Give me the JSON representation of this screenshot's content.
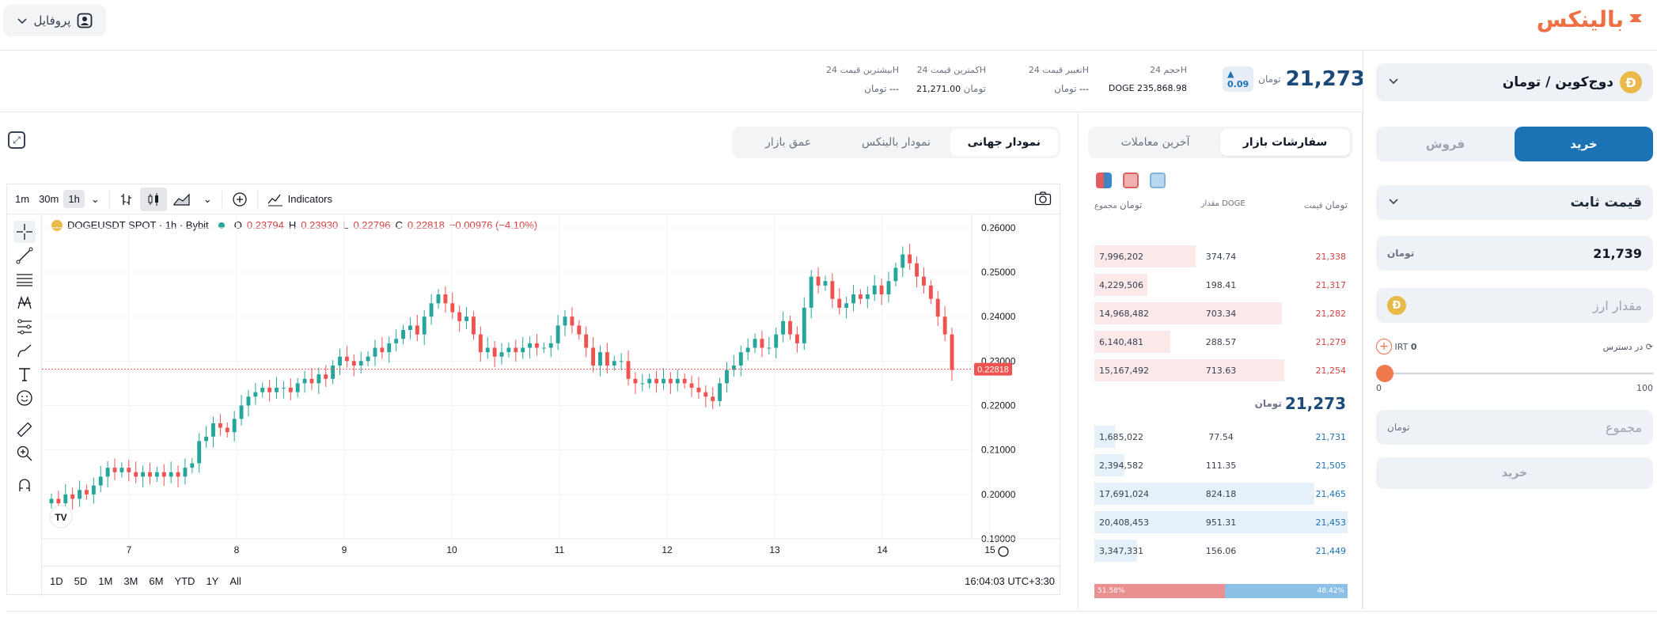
{
  "header": {
    "profile_label": "پروفایل",
    "logo_text": "بالینکس",
    "brand_color": "#ef6f45"
  },
  "trade_form": {
    "pair_label": "دوج‌کوین / تومان",
    "coin_letter": "Đ",
    "tabs": {
      "buy": "خرید",
      "sell": "فروش"
    },
    "order_type": "قیمت ثابت",
    "price_value": "21,739",
    "toman_unit": "تومان",
    "amount_placeholder": "مقدار ارز",
    "available_label": "در دسترس",
    "available_value": "0",
    "available_unit": "IRT",
    "slider_min": "0",
    "slider_max": "100",
    "slider_percent": 0,
    "total_placeholder": "مجموع",
    "submit_label": "خرید"
  },
  "stats": {
    "last_price": "21,273",
    "last_price_unit": "تومان",
    "change_badge": "0.09",
    "volume_title": "حجم 24H",
    "volume_value": "235,868.98",
    "volume_unit": "DOGE",
    "change_title": "تغییر قیمت 24H",
    "change_value": "---",
    "low_title": "کمترین قیمت 24H",
    "low_value": "21,271.00",
    "high_title": "بیشترین قیمت 24H",
    "high_value": "---"
  },
  "orderbook": {
    "tabs": {
      "market_orders": "سفارشات بازار",
      "recent_trades": "آخرین معاملات"
    },
    "columns": {
      "price": "قیمت",
      "amount": "مقدار DOGE",
      "total": "مجموع"
    },
    "asks": [
      {
        "total": "7,996,202",
        "amount": "374.74",
        "price": "21,338",
        "depth": 0.4
      },
      {
        "total": "4,229,506",
        "amount": "198.41",
        "price": "21,317",
        "depth": 0.21
      },
      {
        "total": "14,968,482",
        "amount": "703.34",
        "price": "21,282",
        "depth": 0.74
      },
      {
        "total": "6,140,481",
        "amount": "288.57",
        "price": "21,279",
        "depth": 0.3
      },
      {
        "total": "15,167,492",
        "amount": "713.63",
        "price": "21,254",
        "depth": 0.75
      }
    ],
    "mid_price": "21,273",
    "bids": [
      {
        "total": "1,685,022",
        "amount": "77.54",
        "price": "21,731",
        "depth": 0.08
      },
      {
        "total": "2,394,582",
        "amount": "111.35",
        "price": "21,505",
        "depth": 0.12
      },
      {
        "total": "17,691,024",
        "amount": "824.18",
        "price": "21,465",
        "depth": 0.87
      },
      {
        "total": "20,408,453",
        "amount": "951.31",
        "price": "21,453",
        "depth": 1.0
      },
      {
        "total": "3,347,331",
        "amount": "156.06",
        "price": "21,449",
        "depth": 0.17
      }
    ],
    "sell_ratio": "51.58%",
    "buy_ratio": "48.42%",
    "sell_fraction": 0.5158
  },
  "chart_tabs": {
    "global": "نمودار جهانی",
    "balinex": "نمودار بالینکس",
    "depth": "عمق بازار"
  },
  "tv": {
    "timeframes": [
      "1m",
      "30m",
      "1h"
    ],
    "active_timeframe": "1h",
    "indicators_label": "Indicators",
    "symbol": "DOGEUSDT SPOT · 1h · Bybit",
    "ohlc": {
      "o_label": "O",
      "o": "0.23794",
      "h_label": "H",
      "h": "0.23930",
      "l_label": "L",
      "l": "0.22796",
      "c_label": "C",
      "c": "0.22818",
      "change": "−0.00976 (−4.10%)"
    },
    "ranges": [
      "1D",
      "5D",
      "1M",
      "3M",
      "6M",
      "YTD",
      "1Y",
      "All"
    ],
    "clock": "16:04:03 UTC+3:30",
    "current_price_label": "0.22818",
    "up_color": "#26a69a",
    "down_color": "#ef5350"
  },
  "chart_data": {
    "type": "candlestick",
    "symbol": "DOGEUSDT",
    "x_ticks": [
      "7",
      "8",
      "9",
      "10",
      "11",
      "12",
      "13",
      "14",
      "15"
    ],
    "y_ticks": [
      "0.26000",
      "0.25000",
      "0.24000",
      "0.23000",
      "0.22000",
      "0.21000",
      "0.20000",
      "0.19000"
    ],
    "ylim": [
      0.19,
      0.263
    ],
    "current_price": 0.22818,
    "close_series": [
      0.199,
      0.198,
      0.2,
      0.199,
      0.201,
      0.2,
      0.202,
      0.204,
      0.206,
      0.205,
      0.206,
      0.205,
      0.204,
      0.205,
      0.204,
      0.205,
      0.204,
      0.205,
      0.204,
      0.206,
      0.207,
      0.212,
      0.213,
      0.216,
      0.215,
      0.214,
      0.217,
      0.22,
      0.222,
      0.223,
      0.224,
      0.223,
      0.224,
      0.224,
      0.223,
      0.225,
      0.226,
      0.225,
      0.227,
      0.226,
      0.229,
      0.231,
      0.23,
      0.229,
      0.23,
      0.231,
      0.233,
      0.232,
      0.234,
      0.235,
      0.237,
      0.238,
      0.236,
      0.24,
      0.243,
      0.245,
      0.243,
      0.241,
      0.239,
      0.24,
      0.236,
      0.232,
      0.233,
      0.231,
      0.232,
      0.233,
      0.232,
      0.233,
      0.234,
      0.233,
      0.233,
      0.234,
      0.238,
      0.24,
      0.238,
      0.236,
      0.233,
      0.229,
      0.232,
      0.229,
      0.23,
      0.23,
      0.226,
      0.225,
      0.225,
      0.226,
      0.225,
      0.226,
      0.225,
      0.226,
      0.225,
      0.224,
      0.223,
      0.222,
      0.221,
      0.225,
      0.228,
      0.229,
      0.232,
      0.233,
      0.235,
      0.233,
      0.233,
      0.236,
      0.239,
      0.236,
      0.234,
      0.242,
      0.249,
      0.247,
      0.248,
      0.244,
      0.242,
      0.243,
      0.245,
      0.244,
      0.245,
      0.247,
      0.245,
      0.248,
      0.251,
      0.254,
      0.252,
      0.249,
      0.247,
      0.244,
      0.24,
      0.236,
      0.228
    ]
  }
}
